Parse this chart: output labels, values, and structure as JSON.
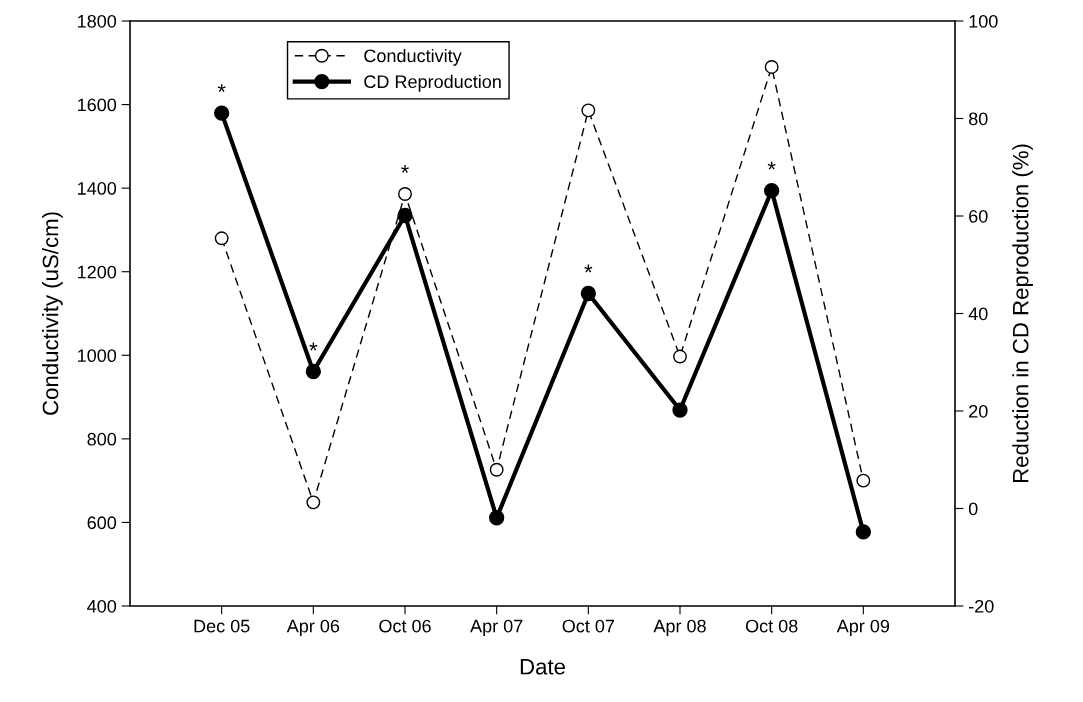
{
  "chart_data": {
    "type": "line",
    "xlabel": "Date",
    "ylabel": "Conductivity (uS/cm)",
    "y2label": "Reduction in CD Reproduction (%)",
    "categories": [
      "Dec 05",
      "Apr 06",
      "Oct 06",
      "Apr 07",
      "Oct 07",
      "Apr 08",
      "Oct 08",
      "Apr 09"
    ],
    "series": [
      {
        "name": "Conductivity",
        "color": "#000000",
        "values": [
          1280,
          648,
          1386,
          726,
          1586,
          997,
          1690,
          700
        ],
        "marker": "circle",
        "line_style": "dashed"
      },
      {
        "name": "CD Reproduction",
        "color": "#000000",
        "values": [
          81.1,
          28.1,
          60.1,
          -1.9,
          44.1,
          20.2,
          65.2,
          -4.8
        ],
        "axis": "y2",
        "marker": "circle",
        "line_style": "solid",
        "value_labels": [
          "*",
          "*",
          "*",
          null,
          "*",
          null,
          "*",
          null
        ]
      }
    ],
    "ylim": [
      400,
      1800
    ],
    "yticks": [
      400,
      600,
      800,
      1000,
      1200,
      1400,
      1600,
      1800
    ],
    "y2lim": [
      -20,
      100
    ],
    "y2ticks": [
      -20,
      0,
      20,
      40,
      60,
      80,
      100
    ],
    "legend": "top left",
    "grid": false
  }
}
